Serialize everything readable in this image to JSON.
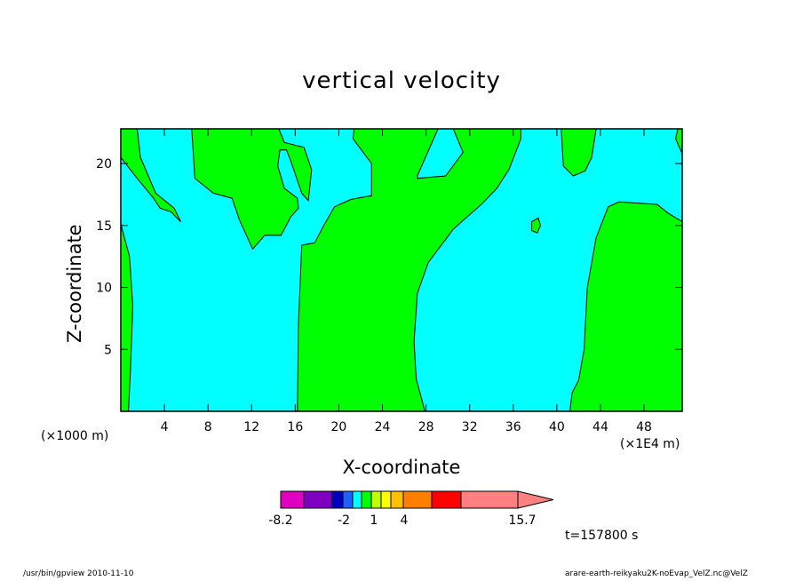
{
  "chart_data": {
    "type": "heatmap",
    "title": "vertical velocity",
    "xlabel": "X-coordinate",
    "ylabel": "Z-coordinate",
    "x_unit_left": "(×1000 m)",
    "x_unit_right": "(×1E4 m)",
    "xlim": [
      0,
      51.5
    ],
    "ylim": [
      0,
      22.8
    ],
    "x_ticks": [
      4,
      8,
      12,
      16,
      20,
      24,
      28,
      32,
      36,
      40,
      44,
      48
    ],
    "y_ticks": [
      5,
      10,
      15,
      20
    ],
    "colorbar": {
      "colors": [
        "#e000c0",
        "#8000c0",
        "#0000c0",
        "#2060ff",
        "#00ffff",
        "#00ff00",
        "#c0ff00",
        "#ffff00",
        "#ffc000",
        "#ff8000",
        "#ff0000",
        "#ff8080"
      ],
      "labels": [
        "-8.2",
        "-2",
        "1",
        "4",
        "15.7"
      ],
      "range": [
        -8.2,
        15.7
      ]
    },
    "fill_colors": {
      "background": "#00ffff",
      "region": "#00ff00"
    },
    "regions": [
      [
        [
          0,
          22.8
        ],
        [
          0,
          20.5
        ],
        [
          1.5,
          18.8
        ],
        [
          3,
          17.2
        ],
        [
          3.6,
          16.4
        ],
        [
          4.6,
          16.1
        ],
        [
          5.5,
          15.3
        ],
        [
          4.9,
          16.4
        ],
        [
          3.2,
          17.6
        ],
        [
          1.8,
          20.5
        ],
        [
          1.5,
          22.8
        ]
      ],
      [
        [
          6.5,
          22.8
        ],
        [
          6.8,
          18.8
        ],
        [
          8.5,
          17.6
        ],
        [
          10.2,
          17.2
        ],
        [
          10.9,
          15.4
        ],
        [
          12.1,
          13.1
        ],
        [
          13.2,
          14.2
        ],
        [
          14.7,
          14.2
        ],
        [
          15.6,
          15.7
        ],
        [
          16.3,
          16.4
        ],
        [
          16.2,
          17.2
        ],
        [
          15,
          18
        ],
        [
          14.4,
          19.8
        ],
        [
          14.6,
          21.1
        ],
        [
          15.2,
          21.1
        ],
        [
          15.6,
          20.2
        ],
        [
          16.6,
          17.6
        ],
        [
          17.2,
          17
        ],
        [
          17.5,
          19.5
        ],
        [
          16.8,
          21.3
        ],
        [
          15,
          21.7
        ],
        [
          14.5,
          22.8
        ]
      ],
      [
        [
          0,
          15.1
        ],
        [
          0.8,
          12.5
        ],
        [
          1.1,
          8.5
        ],
        [
          0.9,
          3.5
        ],
        [
          0.7,
          0
        ],
        [
          0,
          0
        ]
      ],
      [
        [
          16.2,
          0
        ],
        [
          16.3,
          7
        ],
        [
          16.6,
          13.4
        ],
        [
          17.8,
          13.6
        ],
        [
          18.5,
          14.8
        ],
        [
          19.6,
          16.5
        ],
        [
          21.1,
          17.1
        ],
        [
          23,
          17.4
        ],
        [
          23,
          20
        ],
        [
          21.3,
          22
        ],
        [
          21.4,
          22.8
        ],
        [
          29.1,
          22.8
        ],
        [
          27.2,
          19
        ],
        [
          27.2,
          18.8
        ],
        [
          29.8,
          19
        ],
        [
          31.4,
          20.9
        ],
        [
          30.5,
          22.8
        ],
        [
          36.7,
          22.8
        ],
        [
          36.7,
          22
        ],
        [
          35.6,
          19.5
        ],
        [
          34.5,
          18
        ],
        [
          33.2,
          16.8
        ],
        [
          30.5,
          14.7
        ],
        [
          28.2,
          12
        ],
        [
          27.2,
          9.5
        ],
        [
          26.9,
          5.6
        ],
        [
          27.1,
          2.6
        ],
        [
          27.9,
          0
        ]
      ],
      [
        [
          37.7,
          15.3
        ],
        [
          38.3,
          15.6
        ],
        [
          38.5,
          15
        ],
        [
          38.2,
          14.4
        ],
        [
          37.7,
          14.6
        ]
      ],
      [
        [
          40.4,
          22.8
        ],
        [
          40.6,
          19.8
        ],
        [
          41.5,
          19
        ],
        [
          42.6,
          19.4
        ],
        [
          43.2,
          20.5
        ],
        [
          43.6,
          22.8
        ]
      ],
      [
        [
          41.2,
          0
        ],
        [
          41.4,
          1.5
        ],
        [
          42,
          2.5
        ],
        [
          42.5,
          5
        ],
        [
          42.8,
          10
        ],
        [
          43.6,
          14
        ],
        [
          44.7,
          16.5
        ],
        [
          45.7,
          16.9
        ],
        [
          49.2,
          16.7
        ],
        [
          50.2,
          16
        ],
        [
          51.5,
          15.3
        ],
        [
          51.5,
          0
        ]
      ],
      [
        [
          51.1,
          22.8
        ],
        [
          50.9,
          22
        ],
        [
          51.5,
          20.8
        ],
        [
          51.5,
          22.8
        ]
      ]
    ],
    "time_label": "t=157800 s"
  },
  "footer": {
    "left": "/usr/bin/gpview   2010-11-10",
    "right": "arare-earth-reikyaku2K-noEvap_VelZ.nc@VelZ"
  }
}
